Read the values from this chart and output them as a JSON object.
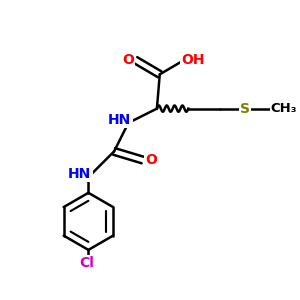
{
  "background_color": "#ffffff",
  "atom_colors": {
    "O": "#ff0000",
    "N": "#0000ff",
    "S": "#808000",
    "Cl": "#cc00cc",
    "C": "#000000",
    "H": "#000000"
  },
  "bond_color": "#000000",
  "bond_width": 1.8,
  "figsize": [
    3.0,
    3.0
  ],
  "dpi": 100,
  "xlim": [
    0,
    10
  ],
  "ylim": [
    0,
    10
  ]
}
